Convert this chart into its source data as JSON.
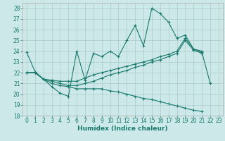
{
  "xlabel": "Humidex (Indice chaleur)",
  "bg_color": "#cce8e8",
  "grid_color": "#aacccc",
  "line_color": "#1a7a6e",
  "xlim": [
    -0.5,
    23.5
  ],
  "ylim": [
    18,
    28.5
  ],
  "xticks": [
    0,
    1,
    2,
    3,
    4,
    5,
    6,
    7,
    8,
    9,
    10,
    11,
    12,
    13,
    14,
    15,
    16,
    17,
    18,
    19,
    20,
    21,
    22,
    23
  ],
  "yticks": [
    18,
    19,
    20,
    21,
    22,
    23,
    24,
    25,
    26,
    27,
    28
  ],
  "series": [
    [
      23.9,
      22.1,
      21.4,
      20.7,
      20.1,
      19.8,
      24.0,
      21.3,
      23.8,
      23.5,
      24.0,
      23.5,
      25.0,
      26.4,
      24.5,
      28.0,
      27.5,
      26.7,
      25.2,
      25.5,
      24.2,
      23.9,
      21.0,
      null
    ],
    [
      22.0,
      22.0,
      21.4,
      21.3,
      21.2,
      21.2,
      21.2,
      21.5,
      21.8,
      22.0,
      22.2,
      22.4,
      22.6,
      22.8,
      23.0,
      23.2,
      23.5,
      23.7,
      24.0,
      25.2,
      24.2,
      24.0,
      null,
      null
    ],
    [
      22.0,
      22.0,
      21.4,
      21.2,
      21.0,
      20.8,
      20.8,
      21.0,
      21.2,
      21.5,
      21.8,
      22.0,
      22.2,
      22.5,
      22.7,
      23.0,
      23.2,
      23.5,
      23.8,
      25.0,
      24.1,
      23.8,
      null,
      null
    ],
    [
      22.0,
      22.0,
      21.4,
      21.0,
      20.8,
      20.7,
      20.5,
      20.5,
      20.5,
      20.5,
      20.3,
      20.2,
      20.0,
      19.8,
      19.6,
      19.5,
      19.3,
      19.1,
      18.9,
      18.7,
      18.5,
      18.4,
      null,
      null
    ]
  ],
  "xlabel_fontsize": 6.5,
  "tick_fontsize": 5.5,
  "linewidth": 0.8,
  "markersize": 3,
  "markeredgewidth": 0.8
}
